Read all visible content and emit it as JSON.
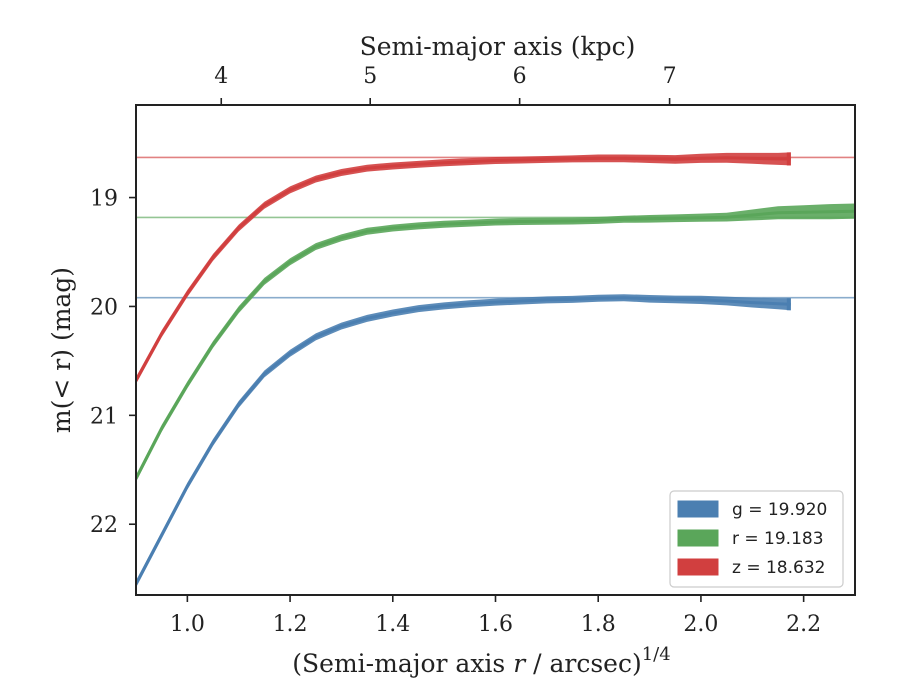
{
  "chart_data": {
    "type": "line",
    "title": "",
    "xlabel": "(Semi-major axis r / arcsec)",
    "xlabel_italic": "r",
    "xlabel_superscript": "1/4",
    "ylabel": "m(< r) (mag)",
    "top_xlabel": "Semi-major axis (kpc)",
    "xlim": [
      0.9,
      2.3
    ],
    "ylim": [
      22.65,
      18.15
    ],
    "y_inverted": true,
    "xticks": [
      1.0,
      1.2,
      1.4,
      1.6,
      1.8,
      2.0,
      2.2
    ],
    "xtick_labels": [
      "1.0",
      "1.2",
      "1.4",
      "1.6",
      "1.8",
      "2.0",
      "2.2"
    ],
    "yticks": [
      19,
      20,
      21,
      22
    ],
    "ytick_labels": [
      "19",
      "20",
      "21",
      "22"
    ],
    "top_xticks_kpc": [
      4,
      5,
      6,
      7
    ],
    "top_xtick_labels": [
      "4",
      "5",
      "6",
      "7"
    ],
    "top_xticks_at_bottom_x": [
      1.066,
      1.356,
      1.647,
      1.939
    ],
    "grid": false,
    "legend_position": "lower-right",
    "series": [
      {
        "name": "g = 19.920",
        "band": "g",
        "value": "19.920",
        "asymptote": 19.92,
        "color": "#4b7fb1",
        "x": [
          0.9,
          0.95,
          1.0,
          1.05,
          1.1,
          1.15,
          1.2,
          1.25,
          1.3,
          1.35,
          1.4,
          1.45,
          1.5,
          1.55,
          1.6,
          1.65,
          1.7,
          1.75,
          1.8,
          1.85,
          1.9,
          1.95,
          2.0,
          2.05,
          2.1,
          2.15,
          2.175
        ],
        "y": [
          22.55,
          22.1,
          21.65,
          21.25,
          20.9,
          20.62,
          20.43,
          20.28,
          20.18,
          20.11,
          20.06,
          20.02,
          19.995,
          19.975,
          19.96,
          19.95,
          19.94,
          19.935,
          19.925,
          19.92,
          19.93,
          19.935,
          19.94,
          19.95,
          19.965,
          19.975,
          19.98
        ],
        "band_halfwidth": [
          0.012,
          0.012,
          0.012,
          0.012,
          0.012,
          0.012,
          0.012,
          0.012,
          0.012,
          0.012,
          0.012,
          0.012,
          0.012,
          0.012,
          0.012,
          0.012,
          0.012,
          0.012,
          0.012,
          0.012,
          0.015,
          0.015,
          0.018,
          0.02,
          0.025,
          0.03,
          0.035
        ]
      },
      {
        "name": "r = 19.183",
        "band": "r",
        "value": "19.183",
        "asymptote": 19.183,
        "color": "#5aa65a",
        "x": [
          0.9,
          0.95,
          1.0,
          1.05,
          1.1,
          1.15,
          1.2,
          1.25,
          1.3,
          1.35,
          1.4,
          1.45,
          1.5,
          1.55,
          1.6,
          1.65,
          1.7,
          1.75,
          1.8,
          1.85,
          1.9,
          1.95,
          2.0,
          2.05,
          2.1,
          2.15,
          2.2,
          2.25,
          2.3
        ],
        "y": [
          21.58,
          21.12,
          20.72,
          20.35,
          20.03,
          19.77,
          19.59,
          19.45,
          19.37,
          19.31,
          19.28,
          19.26,
          19.245,
          19.235,
          19.225,
          19.22,
          19.218,
          19.215,
          19.21,
          19.2,
          19.195,
          19.19,
          19.185,
          19.18,
          19.16,
          19.14,
          19.135,
          19.13,
          19.125
        ],
        "band_halfwidth": [
          0.012,
          0.012,
          0.012,
          0.012,
          0.012,
          0.012,
          0.012,
          0.012,
          0.012,
          0.012,
          0.012,
          0.012,
          0.012,
          0.012,
          0.012,
          0.012,
          0.012,
          0.012,
          0.012,
          0.012,
          0.015,
          0.015,
          0.018,
          0.02,
          0.03,
          0.04,
          0.045,
          0.05,
          0.05
        ]
      },
      {
        "name": "z = 18.632",
        "band": "z",
        "value": "18.632",
        "asymptote": 18.632,
        "color": "#d13f3f",
        "x": [
          0.9,
          0.95,
          1.0,
          1.05,
          1.1,
          1.15,
          1.2,
          1.25,
          1.3,
          1.35,
          1.4,
          1.45,
          1.5,
          1.55,
          1.6,
          1.65,
          1.7,
          1.75,
          1.8,
          1.85,
          1.9,
          1.95,
          2.0,
          2.05,
          2.1,
          2.15,
          2.175
        ],
        "y": [
          20.68,
          20.25,
          19.88,
          19.55,
          19.28,
          19.07,
          18.93,
          18.83,
          18.77,
          18.73,
          18.71,
          18.695,
          18.68,
          18.67,
          18.66,
          18.655,
          18.65,
          18.645,
          18.64,
          18.64,
          18.645,
          18.65,
          18.64,
          18.635,
          18.64,
          18.645,
          18.645
        ],
        "band_halfwidth": [
          0.012,
          0.012,
          0.012,
          0.012,
          0.012,
          0.012,
          0.012,
          0.012,
          0.012,
          0.012,
          0.012,
          0.012,
          0.012,
          0.012,
          0.012,
          0.012,
          0.012,
          0.012,
          0.015,
          0.015,
          0.018,
          0.02,
          0.022,
          0.025,
          0.03,
          0.035,
          0.04
        ]
      }
    ]
  }
}
